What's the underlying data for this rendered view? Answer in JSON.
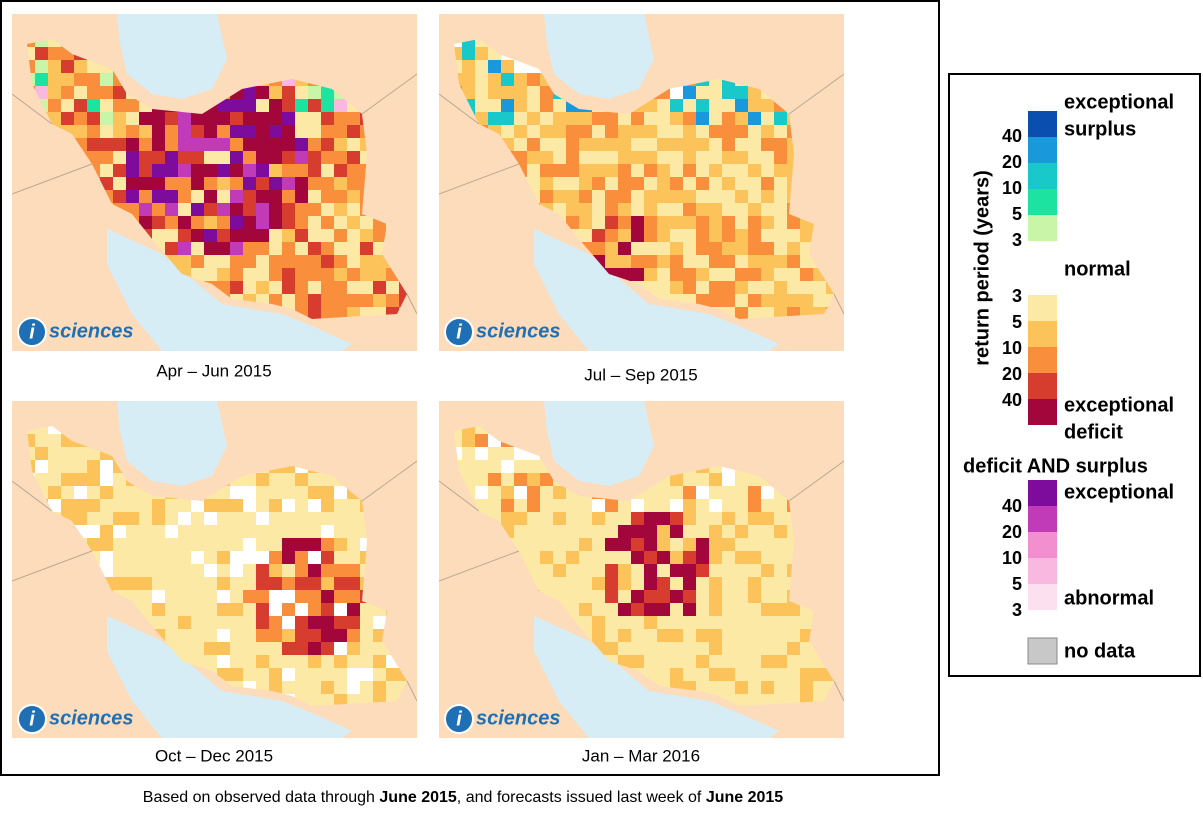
{
  "panels": [
    {
      "caption": "Apr – Jun 2015"
    },
    {
      "caption": "Jul – Sep 2015"
    },
    {
      "caption": "Oct – Dec 2015"
    },
    {
      "caption": "Jan – Mar 2016"
    }
  ],
  "logo": {
    "letter": "i",
    "text": "sciences"
  },
  "legend": {
    "axis_label": "return period (years)",
    "surplus_label": [
      "exceptional",
      "surplus"
    ],
    "normal_label": "normal",
    "deficit_label": [
      "exceptional",
      "deficit"
    ],
    "surplus_ticks": [
      "40",
      "20",
      "10",
      "5",
      "3"
    ],
    "deficit_ticks": [
      "3",
      "5",
      "10",
      "20",
      "40"
    ],
    "both_title": "deficit AND surplus",
    "both_top_label": "exceptional",
    "both_bottom_label": "abnormal",
    "both_ticks": [
      "40",
      "20",
      "10",
      "5",
      "3"
    ],
    "no_data_label": "no data"
  },
  "footnote": [
    {
      "text": "Based on observed data through ",
      "bold": false
    },
    {
      "text": "June 2015",
      "bold": true
    },
    {
      "text": ", and forecasts issued last week of ",
      "bold": false
    },
    {
      "text": "June 2015",
      "bold": true
    }
  ]
}
